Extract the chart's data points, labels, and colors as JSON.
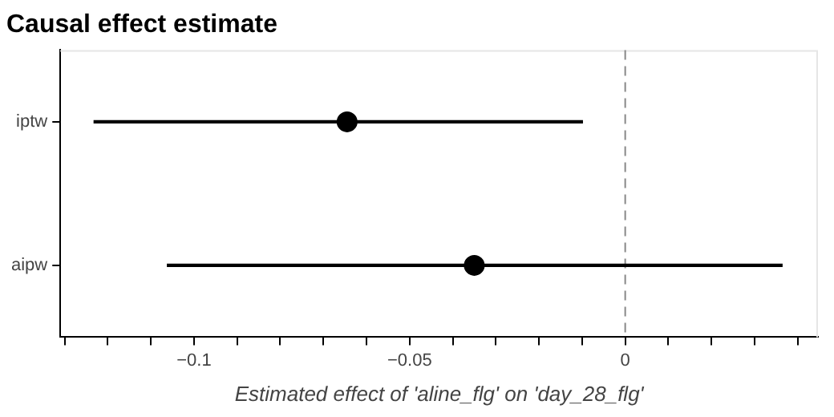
{
  "chart_data": {
    "type": "scatter",
    "title": "Causal effect estimate",
    "xlabel": "Estimated effect of 'aline_flg' on 'day_28_flg'",
    "orientation": "horizontal",
    "categories": [
      "iptw",
      "aipw"
    ],
    "values": [
      -0.0645,
      -0.035
    ],
    "errors": [
      [
        -0.1233,
        -0.0098
      ],
      [
        -0.1063,
        0.0365
      ]
    ],
    "color": "#000000",
    "marker": "circle",
    "xlim": [
      -0.131,
      0.0447
    ],
    "xticks": [
      {
        "value": -0.13,
        "label": null
      },
      {
        "value": -0.12,
        "label": null
      },
      {
        "value": -0.11,
        "label": null
      },
      -0.1,
      {
        "value": -0.09,
        "label": null
      },
      {
        "value": -0.08,
        "label": null
      },
      {
        "value": -0.07,
        "label": null
      },
      {
        "value": -0.06,
        "label": null
      },
      -0.05,
      {
        "value": -0.04,
        "label": null
      },
      {
        "value": -0.03,
        "label": null
      },
      {
        "value": -0.02,
        "label": null
      },
      {
        "value": -0.01,
        "label": null
      },
      0,
      {
        "value": 0.01,
        "label": null
      },
      {
        "value": 0.02,
        "label": null
      },
      {
        "value": 0.03,
        "label": null
      },
      {
        "value": 0.04,
        "label": null
      }
    ],
    "ref_lines": [
      {
        "axis": "x",
        "value": 0,
        "color": "#888888",
        "line_style": "dashed"
      }
    ],
    "grid": false,
    "legend": false
  }
}
